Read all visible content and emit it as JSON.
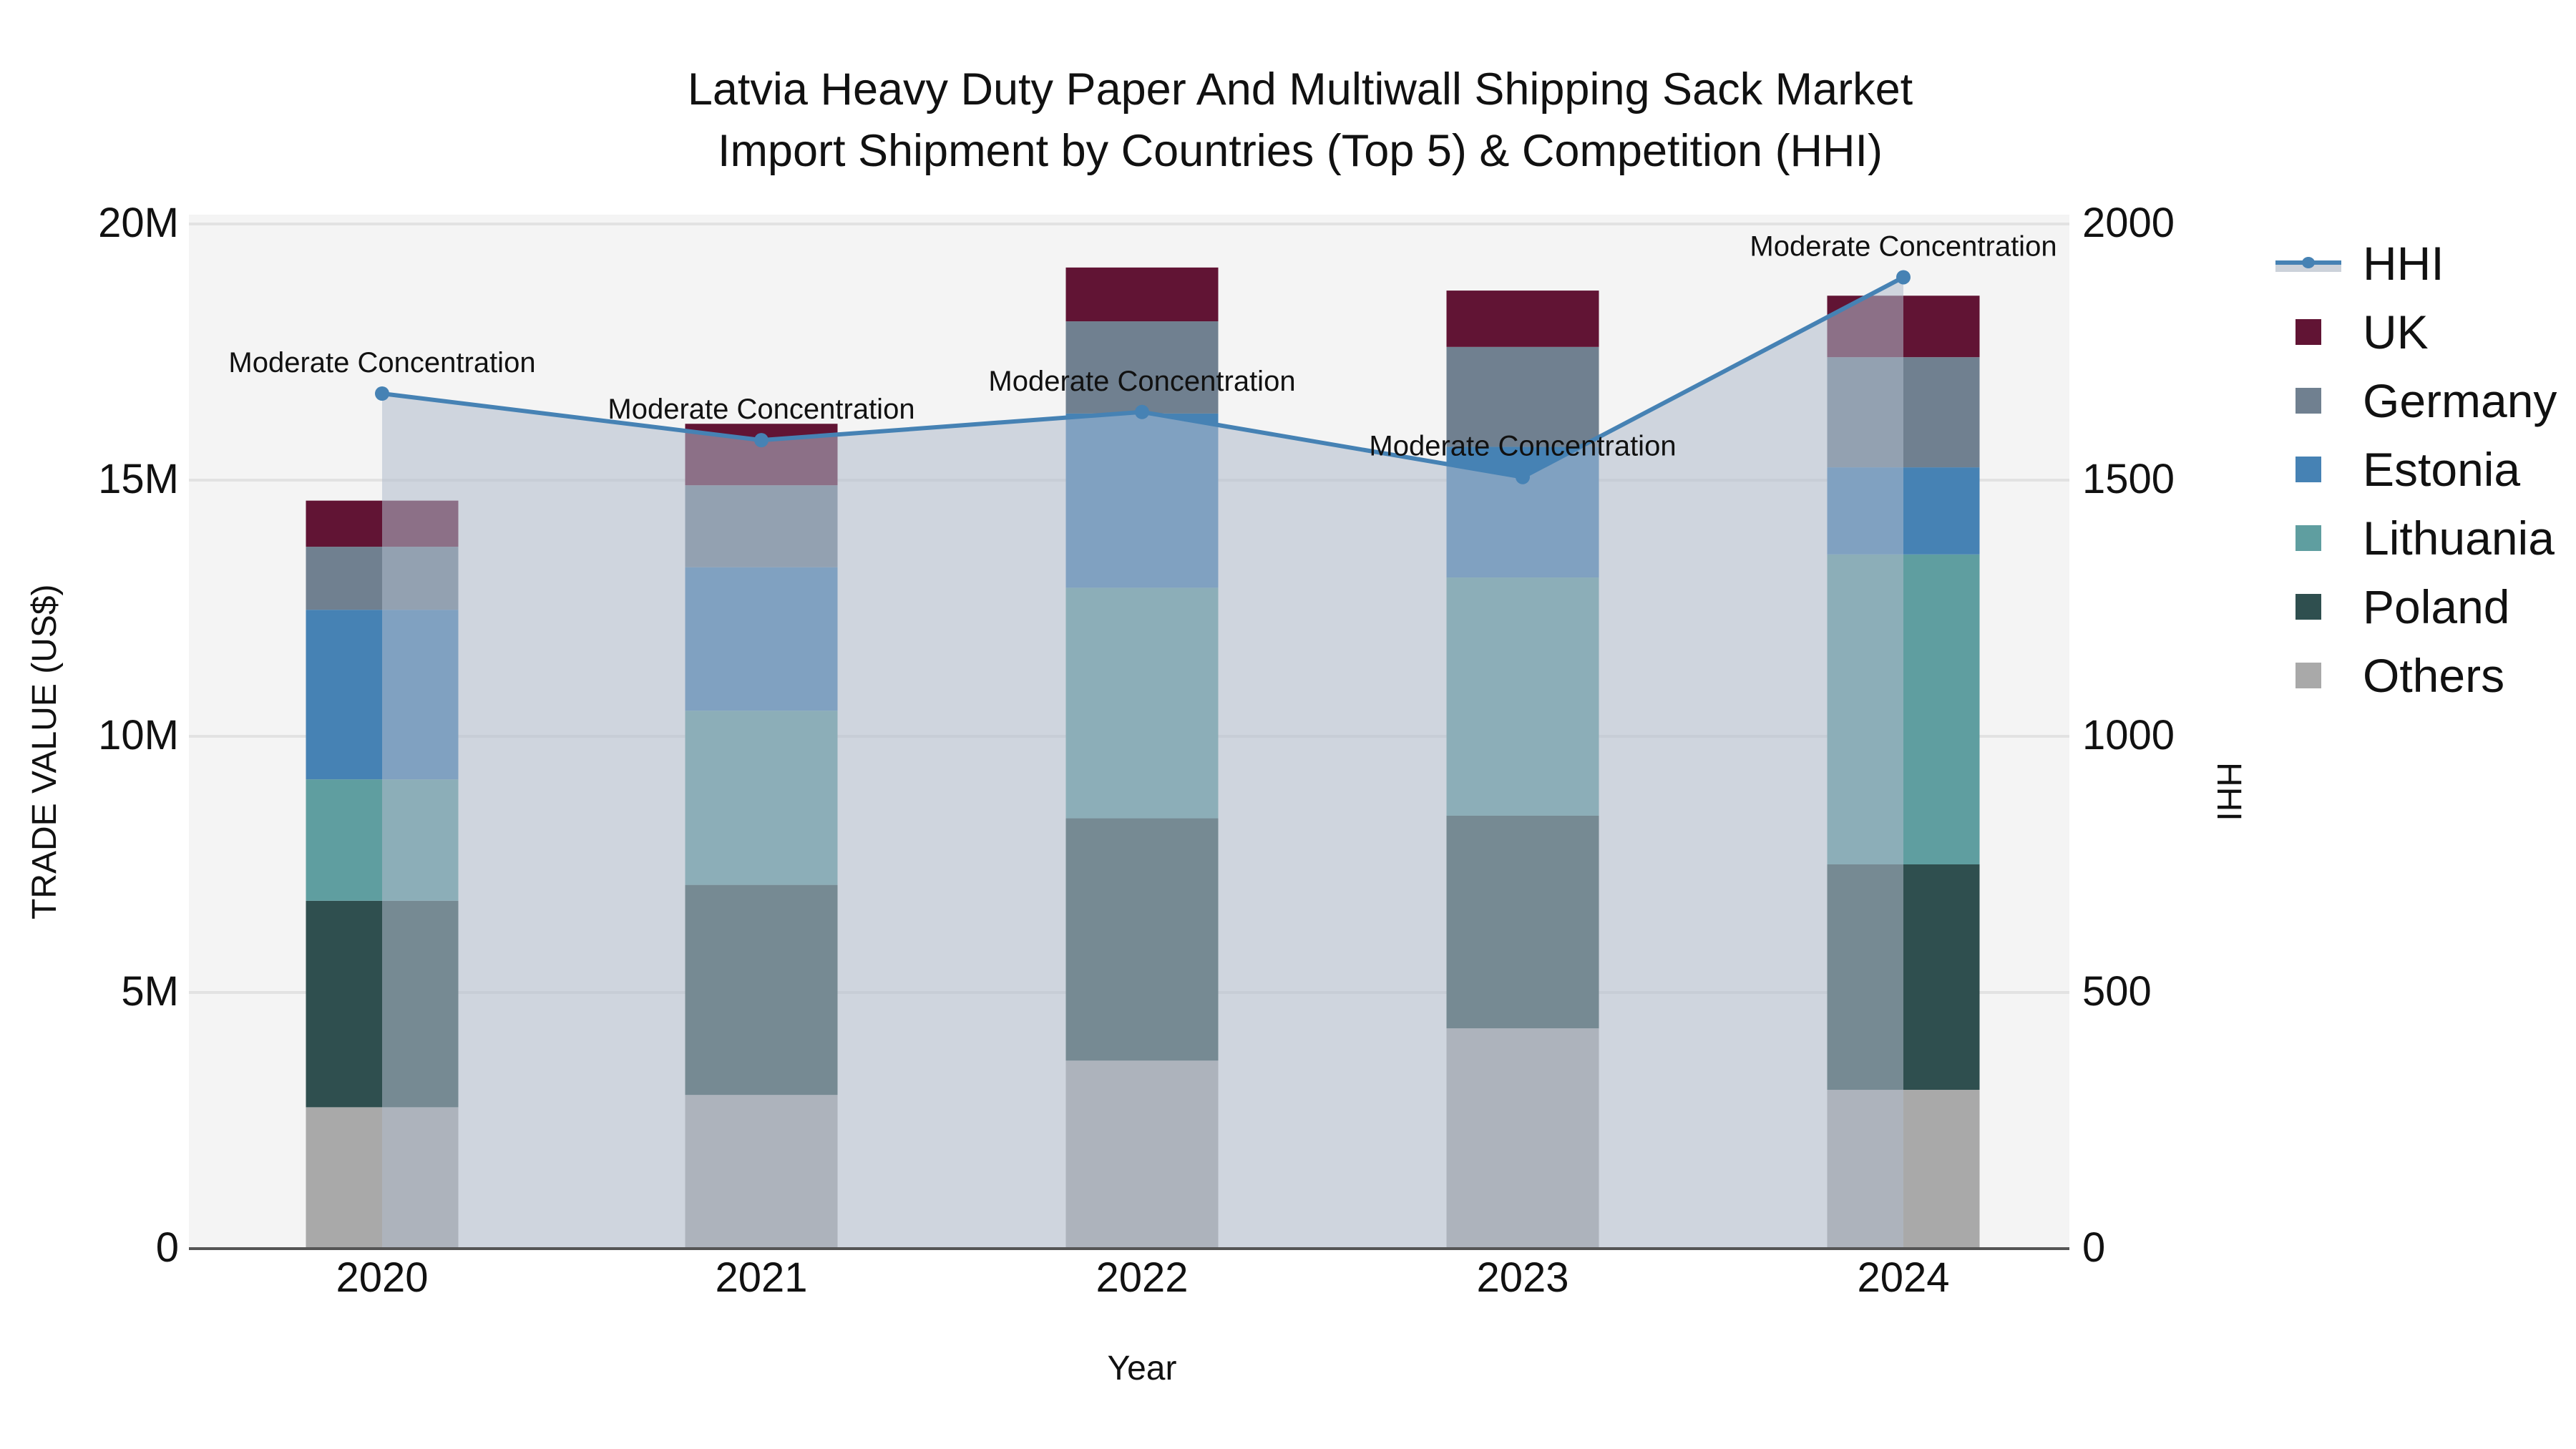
{
  "title": {
    "line1": "Latvia Heavy Duty Paper And Multiwall Shipping Sack Market",
    "line2": "Import Shipment by Countries (Top 5) & Competition (HHI)"
  },
  "axes": {
    "y_left_label": "TRADE VALUE (US$)",
    "y_right_label": "HHI",
    "x_label": "Year",
    "y_left_ticks": [
      "0",
      "5M",
      "10M",
      "15M",
      "20M"
    ],
    "y_right_ticks": [
      "0",
      "500",
      "1000",
      "1500",
      "2000"
    ],
    "x_ticks": [
      "2020",
      "2021",
      "2022",
      "2023",
      "2024"
    ]
  },
  "legend": {
    "items": [
      {
        "label": "HHI",
        "color": "#4682b4",
        "type": "line"
      },
      {
        "label": "UK",
        "color": "#611434",
        "type": "bar"
      },
      {
        "label": "Germany",
        "color": "#708090",
        "type": "bar"
      },
      {
        "label": "Estonia",
        "color": "#4682b4",
        "type": "bar"
      },
      {
        "label": "Lithuania",
        "color": "#5f9ea0",
        "type": "bar"
      },
      {
        "label": "Poland",
        "color": "#2f4f4f",
        "type": "bar"
      },
      {
        "label": "Others",
        "color": "#a9a9a9",
        "type": "bar"
      }
    ]
  },
  "annotations": [
    "Moderate Concentration",
    "Moderate Concentration",
    "Moderate Concentration",
    "Moderate Concentration",
    "Moderate Concentration"
  ],
  "chart_data": {
    "type": "bar",
    "stacked": true,
    "title": "Latvia Heavy Duty Paper And Multiwall Shipping Sack Market Import Shipment by Countries (Top 5) & Competition (HHI)",
    "xlabel": "Year",
    "ylabel": "TRADE VALUE (US$)",
    "y2label": "HHI",
    "ylim": [
      0,
      20000000
    ],
    "y2lim": [
      0,
      2000
    ],
    "categories": [
      "2020",
      "2021",
      "2022",
      "2023",
      "2024"
    ],
    "series": [
      {
        "name": "Others",
        "color": "#a9a9a9",
        "values": [
          2760000,
          3000000,
          3670000,
          4300000,
          3100000
        ]
      },
      {
        "name": "Poland",
        "color": "#2f4f4f",
        "values": [
          4030000,
          4100000,
          4730000,
          4150000,
          4400000
        ]
      },
      {
        "name": "Lithuania",
        "color": "#5f9ea0",
        "values": [
          2370000,
          3400000,
          4500000,
          4650000,
          6050000
        ]
      },
      {
        "name": "Estonia",
        "color": "#4682b4",
        "values": [
          3310000,
          2800000,
          3400000,
          2550000,
          1700000
        ]
      },
      {
        "name": "Germany",
        "color": "#708090",
        "values": [
          1230000,
          1600000,
          1800000,
          1950000,
          2150000
        ]
      },
      {
        "name": "UK",
        "color": "#611434",
        "values": [
          900000,
          1200000,
          1050000,
          1100000,
          1200000
        ]
      }
    ],
    "line_series": {
      "name": "HHI",
      "axis": "right",
      "color": "#4682b4",
      "values": [
        1669,
        1578,
        1633,
        1506,
        1896
      ],
      "labels": [
        "Moderate Concentration",
        "Moderate Concentration",
        "Moderate Concentration",
        "Moderate Concentration",
        "Moderate Concentration"
      ]
    },
    "grid": true,
    "legend_position": "right"
  }
}
